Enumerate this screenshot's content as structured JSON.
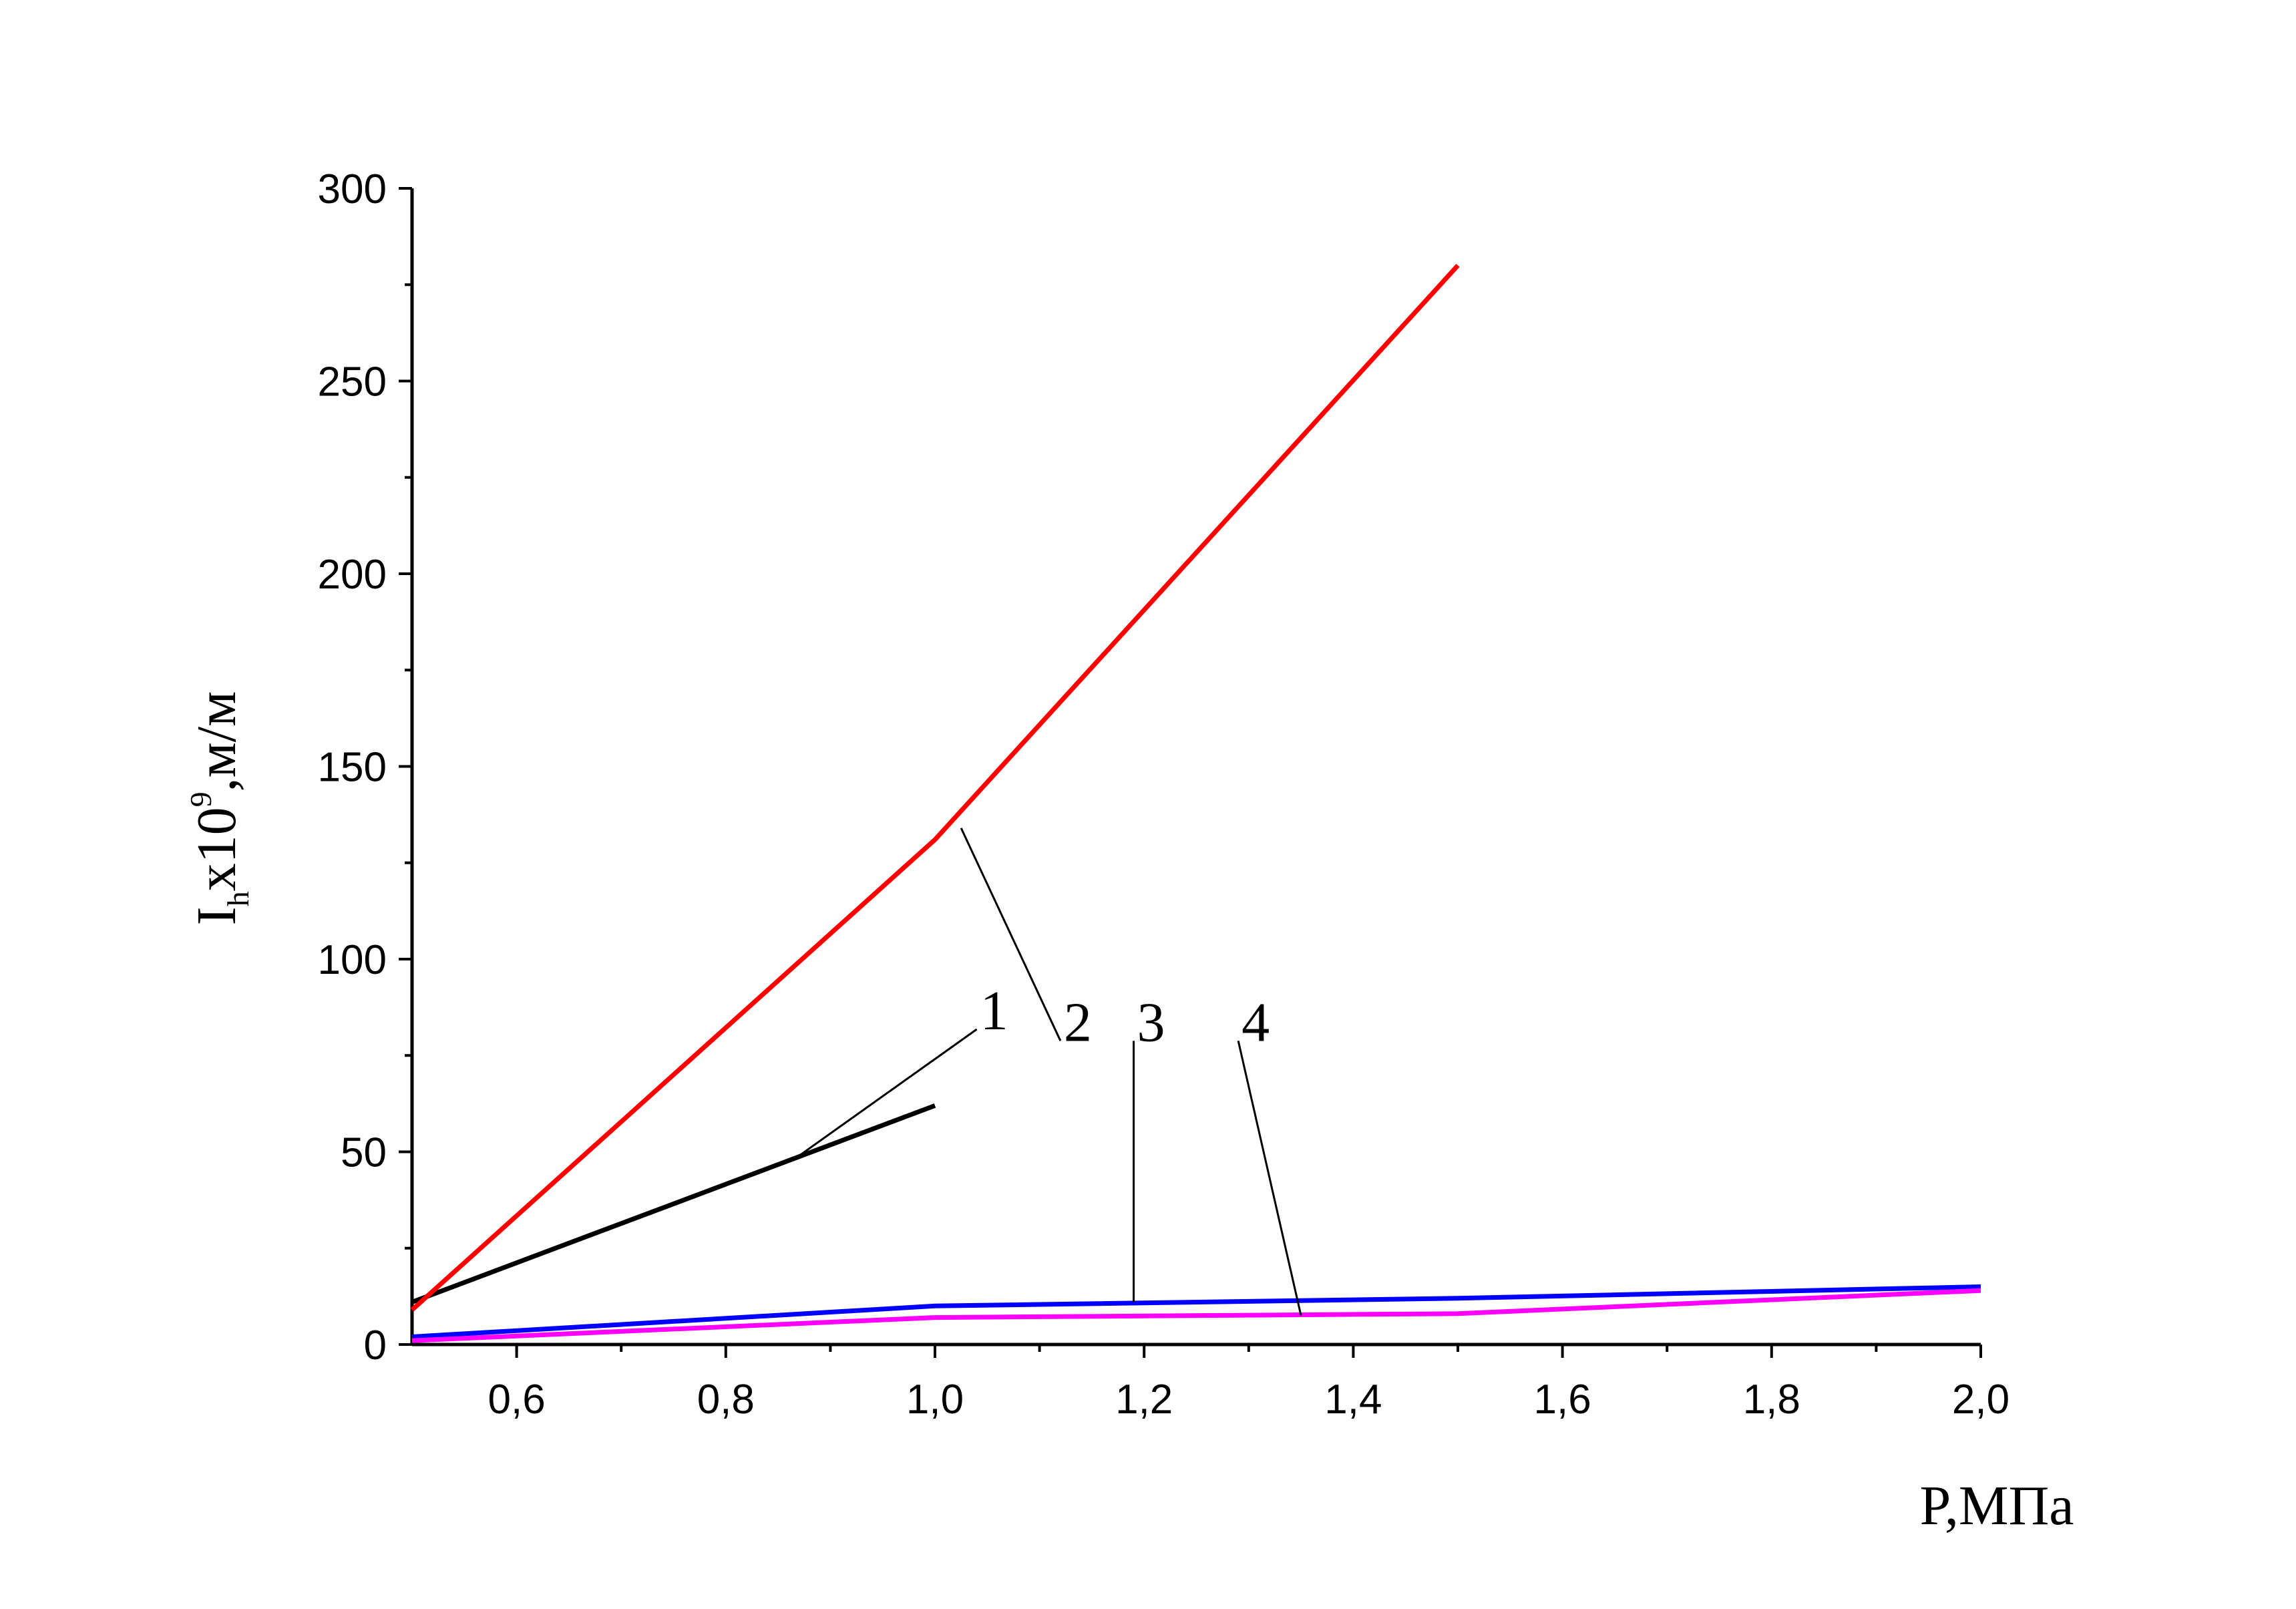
{
  "chart_data": {
    "type": "line",
    "title": "",
    "xlabel": "P,МПа",
    "ylabel": {
      "main": "I",
      "subscript": "h",
      "middle": "x10",
      "superscript": "9",
      "unit": ",м/м"
    },
    "xlim": [
      0.5,
      2.0
    ],
    "ylim": [
      0,
      300
    ],
    "x_ticks": [
      0.6,
      0.8,
      1.0,
      1.2,
      1.4,
      1.6,
      1.8,
      2.0
    ],
    "x_tick_labels": [
      "0,6",
      "0,8",
      "1,0",
      "1,2",
      "1,4",
      "1,6",
      "1,8",
      "2,0"
    ],
    "y_ticks": [
      0,
      50,
      100,
      150,
      200,
      250,
      300
    ],
    "y_tick_labels": [
      "0",
      "50",
      "100",
      "150",
      "200",
      "250",
      "300"
    ],
    "grid": false,
    "legend": "none",
    "series": [
      {
        "name": "1",
        "color": "#000000",
        "points": [
          [
            0.5,
            11
          ],
          [
            1.0,
            62
          ]
        ]
      },
      {
        "name": "2",
        "color": "#ff0000",
        "points": [
          [
            0.5,
            9
          ],
          [
            1.0,
            131
          ],
          [
            1.5,
            280
          ]
        ]
      },
      {
        "name": "3",
        "color": "#0000ff",
        "points": [
          [
            0.5,
            2
          ],
          [
            1.0,
            10
          ],
          [
            1.5,
            12
          ],
          [
            2.0,
            15
          ]
        ]
      },
      {
        "name": "4",
        "color": "#ff00ff",
        "points": [
          [
            0.5,
            1
          ],
          [
            1.0,
            7
          ],
          [
            1.5,
            8
          ],
          [
            2.0,
            14
          ]
        ]
      }
    ],
    "annotations": [
      {
        "text": "1",
        "series": "1",
        "target": [
          0.865,
          48
        ],
        "label_at": [
          1.04,
          87
        ]
      },
      {
        "text": "2",
        "series": "2",
        "target": [
          1.025,
          134
        ],
        "label_at": [
          1.12,
          84
        ]
      },
      {
        "text": "3",
        "series": "3",
        "target": [
          1.19,
          11
        ],
        "label_at": [
          1.19,
          84
        ]
      },
      {
        "text": "4",
        "series": "4",
        "target": [
          1.35,
          7.5
        ],
        "label_at": [
          1.29,
          84
        ]
      }
    ]
  }
}
